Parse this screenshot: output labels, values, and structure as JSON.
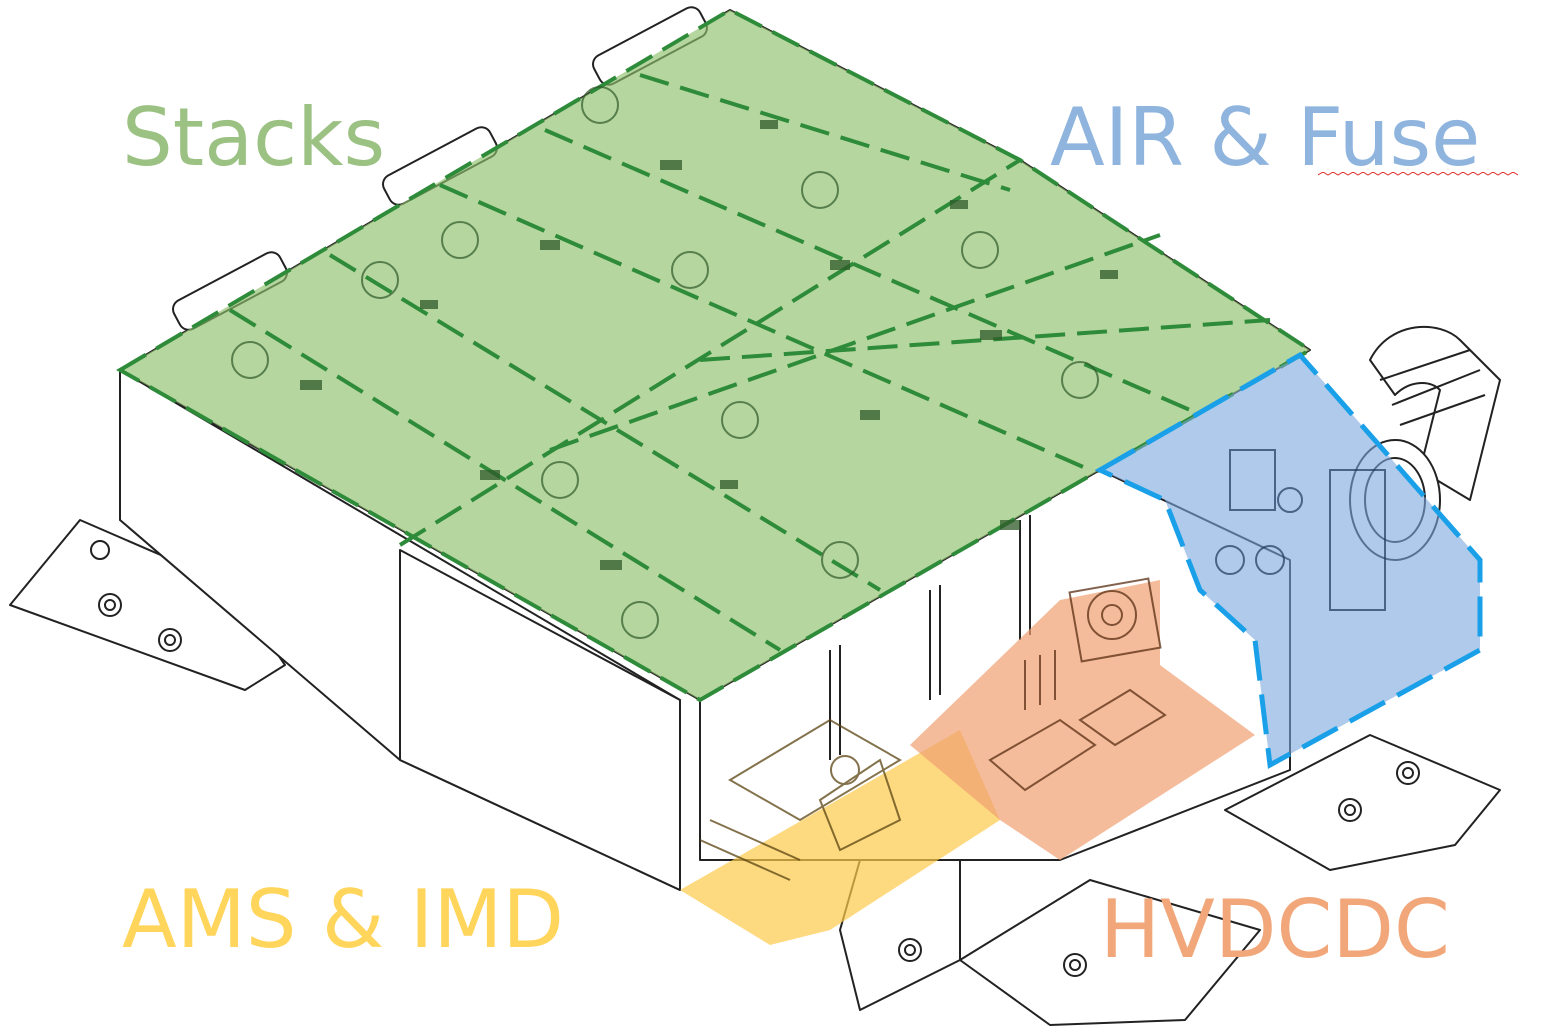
{
  "labels": {
    "stacks": "Stacks",
    "air_fuse": "AIR & Fuse",
    "ams_imd": "AMS & IMD",
    "hvdcdc": "HVDCDC"
  },
  "colors": {
    "stacks_text": "#9bc183",
    "stacks_fill": "#8dc06a",
    "stacks_border": "#2e8b3a",
    "air_text": "#8fb4de",
    "air_fill": "#7aa6dc",
    "air_border": "#1aa0e8",
    "ams_text": "#ffd55c",
    "ams_fill": "#fcc94a",
    "hv_text": "#f1a77a",
    "hv_fill": "#f0a070",
    "line": "#222222"
  },
  "icons": [
    "battery-stack-drawing",
    "cooling-fan-icon",
    "hose-connector-icon",
    "mounting-bolt-icon"
  ]
}
